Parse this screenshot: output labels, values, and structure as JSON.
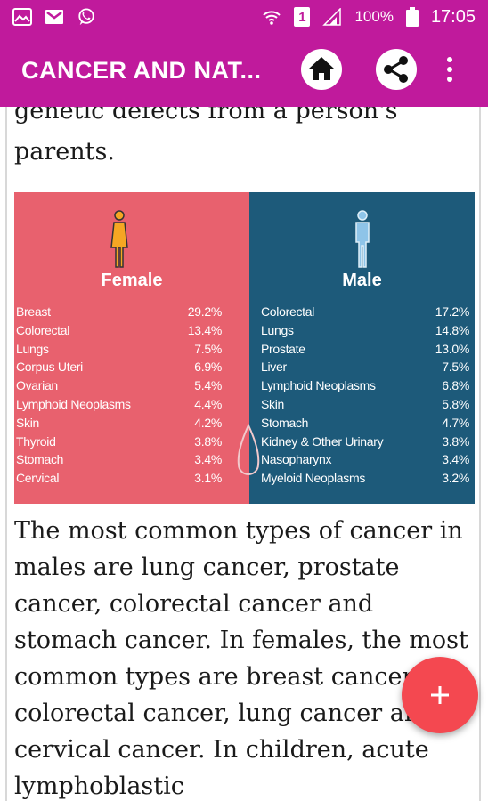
{
  "status_bar": {
    "left_icons": [
      "gallery-icon",
      "gmail-icon",
      "whatsapp-icon"
    ],
    "right_icons": [
      "wifi-icon",
      "sim-icon",
      "signal-icon",
      "battery-icon"
    ],
    "sim_label": "1",
    "battery_percent": "100%",
    "time": "17:05"
  },
  "app_bar": {
    "title": "CANCER AND NAT...",
    "actions": [
      "home-icon",
      "share-icon",
      "more-vert-icon"
    ],
    "color": "#c01a9c"
  },
  "article": {
    "top_text": "genetic defects from a person's parents.",
    "main_text": "The most common types of cancer in males are lung cancer, prostate cancer, colorectal cancer and stomach cancer. In females, the most common types are breast cancer, colorectal cancer, lung cancer and cervical cancer. In children, acute lymphoblastic"
  },
  "infographic": {
    "female": {
      "title": "Female",
      "color": "#e8616e",
      "items": [
        {
          "label": "Breast",
          "value": "29.2%"
        },
        {
          "label": "Colorectal",
          "value": "13.4%"
        },
        {
          "label": "Lungs",
          "value": "7.5%"
        },
        {
          "label": "Corpus Uteri",
          "value": "6.9%"
        },
        {
          "label": "Ovarian",
          "value": "5.4%"
        },
        {
          "label": "Lymphoid Neoplasms",
          "value": "4.4%"
        },
        {
          "label": "Skin",
          "value": "4.2%"
        },
        {
          "label": "Thyroid",
          "value": "3.8%"
        },
        {
          "label": "Stomach",
          "value": "3.4%"
        },
        {
          "label": "Cervical",
          "value": "3.1%"
        }
      ]
    },
    "male": {
      "title": "Male",
      "color": "#1d5a7a",
      "items": [
        {
          "label": "Colorectal",
          "value": "17.2%"
        },
        {
          "label": "Lungs",
          "value": "14.8%"
        },
        {
          "label": "Prostate",
          "value": "13.0%"
        },
        {
          "label": "Liver",
          "value": "7.5%"
        },
        {
          "label": "Lymphoid Neoplasms",
          "value": "6.8%"
        },
        {
          "label": "Skin",
          "value": "5.8%"
        },
        {
          "label": "Stomach",
          "value": "4.7%"
        },
        {
          "label": "Kidney & Other Urinary",
          "value": "3.8%"
        },
        {
          "label": "Nasopharynx",
          "value": "3.4%"
        },
        {
          "label": "Myeloid Neoplasms",
          "value": "3.2%"
        }
      ]
    }
  },
  "fab": {
    "icon": "plus-icon",
    "color": "#f44850"
  }
}
